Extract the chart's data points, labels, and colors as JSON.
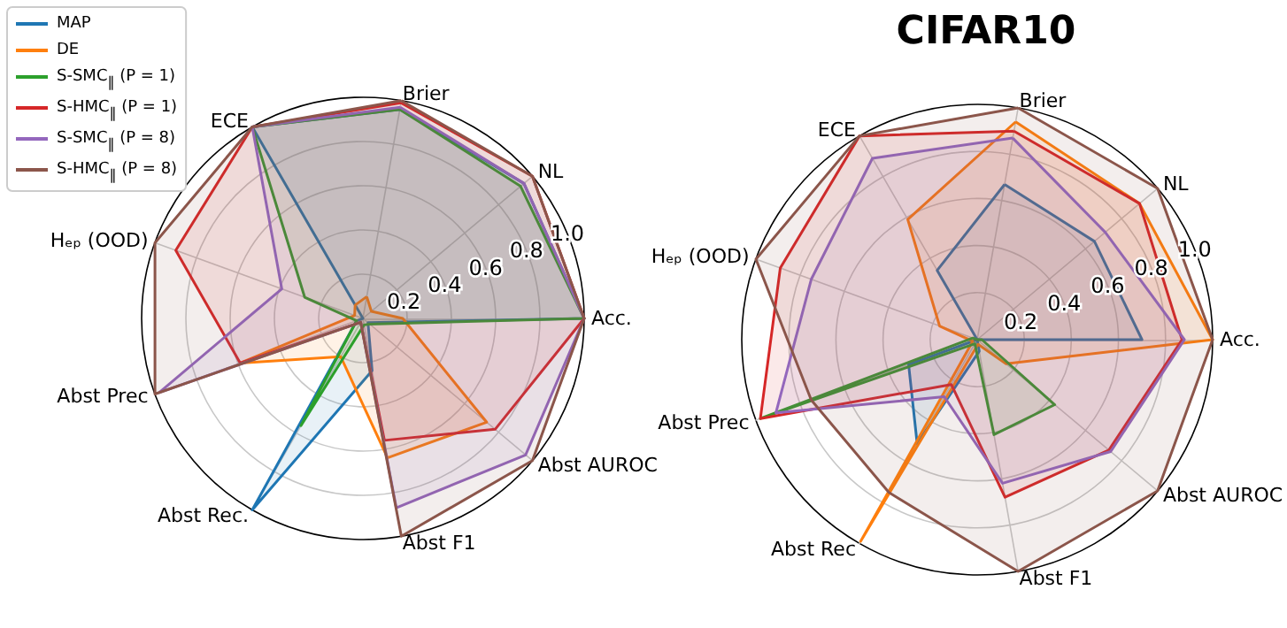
{
  "chart_data": [
    {
      "type": "radar",
      "categories": [
        "Brier",
        "NL",
        "Acc.",
        "Abst AUROC",
        "Abst F1",
        "Abst Rec.",
        "Abst Prec",
        "Hₑₚ (OOD)",
        "ECE"
      ],
      "ylim": [
        0,
        1
      ],
      "yticks": [
        0.2,
        0.4,
        0.6,
        0.8,
        {
          "value": 1,
          "label": "1.0"
        }
      ],
      "grid": true,
      "legend": "top left",
      "marker": "none",
      "series": [
        {
          "name": "MAP",
          "color": "#1f77b4",
          "values": [
            0.96,
            0.95,
            1.0,
            0.03,
            0.24,
            1.0,
            0.03,
            0.0,
            1.0
          ]
        },
        {
          "name": "DE",
          "color": "#ff7f0e",
          "values": [
            0.1,
            0.05,
            0.18,
            0.73,
            0.64,
            0.2,
            0.59,
            0.04,
            0.07
          ]
        },
        {
          "name": "S-SMC$_{‖}$ (P = 1)",
          "color": "#2ca02c",
          "values": [
            0.96,
            0.93,
            1.0,
            0.04,
            0.03,
            0.56,
            0.03,
            0.28,
            1.0
          ]
        },
        {
          "name": "S-HMC$_{‖}$ (P = 1)",
          "color": "#d62728",
          "values": [
            0.99,
            1.0,
            1.0,
            0.78,
            0.56,
            0.02,
            0.59,
            0.9,
            1.0
          ]
        },
        {
          "name": "S-SMC$_{‖}$ (P = 8)",
          "color": "#9467bd",
          "values": [
            0.97,
            0.95,
            1.0,
            0.96,
            0.87,
            0.02,
            0.98,
            0.39,
            1.0
          ]
        },
        {
          "name": "S-HMC$_{‖}$ (P = 8)",
          "color": "#8c564b",
          "values": [
            1.0,
            1.0,
            1.0,
            1.0,
            1.0,
            0.02,
            1.0,
            1.0,
            1.0
          ]
        }
      ]
    },
    {
      "type": "radar",
      "title": "CIFAR10",
      "categories": [
        "Brier",
        "NL",
        "Acc.",
        "Abst AUROC",
        "Abst F1",
        "Abst Rec",
        "Abst Prec",
        "Hₑₚ (OOD)",
        "ECE"
      ],
      "ylim": [
        0,
        1
      ],
      "yticks": [
        0.2,
        0.4,
        0.6,
        0.8,
        {
          "value": 1,
          "label": "1.0"
        }
      ],
      "grid": true,
      "marker": "none",
      "series": [
        {
          "color": "#1f77b4",
          "values": [
            0.67,
            0.65,
            0.7,
            0.0,
            0.05,
            0.51,
            0.31,
            0.0,
            0.34
          ]
        },
        {
          "color": "#ff7f0e",
          "values": [
            0.94,
            0.9,
            1.0,
            0.16,
            0.02,
            0.99,
            0.02,
            0.17,
            0.59
          ]
        },
        {
          "color": "#2ca02c",
          "values": [
            0.0,
            0.0,
            0.02,
            0.43,
            0.41,
            0.02,
            0.98,
            0.02,
            0.0
          ]
        },
        {
          "color": "#d62728",
          "values": [
            0.9,
            0.9,
            0.87,
            0.73,
            0.68,
            0.22,
            0.98,
            0.89,
            1.0
          ]
        },
        {
          "color": "#9467bd",
          "values": [
            0.87,
            0.71,
            0.88,
            0.74,
            0.62,
            0.28,
            0.91,
            0.75,
            0.89
          ]
        },
        {
          "color": "#8c564b",
          "values": [
            1.0,
            1.0,
            1.0,
            1.0,
            1.0,
            0.75,
            0.75,
            1.0,
            1.0
          ]
        }
      ]
    }
  ]
}
